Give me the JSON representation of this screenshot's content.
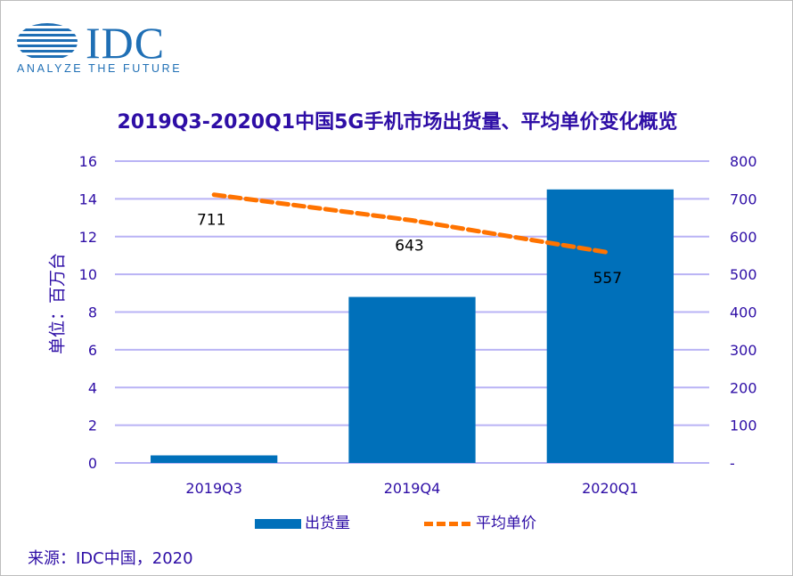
{
  "logo": {
    "name": "IDC",
    "tagline": "ANALYZE THE FUTURE"
  },
  "source": "来源：IDC中国，2020",
  "colors": {
    "bar": "#0070BA",
    "line": "#FF7300",
    "grid": "#B9B3F5",
    "text": "#2E0EA6"
  },
  "chart_data": {
    "type": "bar+line",
    "title": "2019Q3-2020Q1中国5G手机市场出货量、平均单价变化概览",
    "ylabel": "单位：百万台",
    "categories": [
      "2019Q3",
      "2019Q4",
      "2020Q1"
    ],
    "ylim": [
      0,
      16
    ],
    "y_ticks": [
      "0",
      "2",
      "4",
      "6",
      "8",
      "10",
      "12",
      "14",
      "16"
    ],
    "y2lim": [
      0,
      800
    ],
    "y2_ticks": [
      "-",
      "100",
      "200",
      "300",
      "400",
      "500",
      "600",
      "700",
      "800"
    ],
    "grid": true,
    "legend_position": "bottom",
    "series": [
      {
        "name": "出货量",
        "type": "bar",
        "axis": "left",
        "values": [
          0.4,
          8.8,
          14.5
        ]
      },
      {
        "name": "平均单价",
        "type": "line",
        "style": "dashed",
        "axis": "right",
        "values": [
          711,
          643,
          557
        ],
        "labels": [
          "711",
          "643",
          "557"
        ]
      }
    ]
  }
}
